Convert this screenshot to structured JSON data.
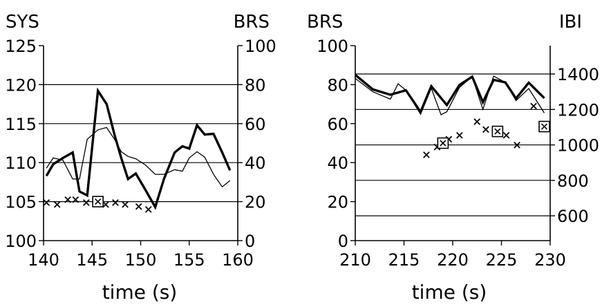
{
  "chart_data": [
    {
      "type": "line",
      "xlabel": "time (s)",
      "ylabel_left": "SYS",
      "ylabel_right": "BRS",
      "xlim": [
        140,
        160
      ],
      "ylim_left": [
        100,
        125
      ],
      "ylim_right": [
        0,
        100
      ],
      "xticks": [
        "140",
        "145",
        "150",
        "155",
        "160"
      ],
      "yticks_left": [
        "100",
        "105",
        "110",
        "115",
        "120",
        "125"
      ],
      "yticks_right": [
        "0",
        "20",
        "40",
        "60",
        "80",
        "100"
      ],
      "grid": "horizontal",
      "series": [
        {
          "axis": "left",
          "style": "thick",
          "x": [
            140.3,
            141,
            142,
            143,
            143.7,
            144.5,
            145.6,
            146.5,
            147.3,
            148,
            148.7,
            149.5,
            150.5,
            151.5,
            152.4,
            153.5,
            154.3,
            155,
            155.8,
            156.6,
            157.5,
            158.4,
            159.2
          ],
          "y": [
            108.3,
            109.8,
            110.6,
            111.3,
            106.3,
            105.8,
            119.2,
            117.5,
            113.6,
            110.6,
            107.9,
            108.6,
            106.5,
            104.3,
            107.9,
            111.3,
            112.1,
            111.8,
            114.8,
            113.6,
            113.7,
            111.3,
            109.0
          ]
        },
        {
          "axis": "left",
          "style": "thin",
          "x": [
            140.3,
            141,
            142,
            143,
            143.7,
            144.5,
            145.6,
            146.5,
            147.3,
            148,
            148.7,
            149.5,
            150.5,
            151.5,
            152.4,
            153.5,
            154.3,
            155,
            155.8,
            156.6,
            157.5,
            158.4,
            159.2
          ],
          "y": [
            109.3,
            110.6,
            110.3,
            107.9,
            107.9,
            113.0,
            114.2,
            114.5,
            113.0,
            111.4,
            110.8,
            110.5,
            109.7,
            108.5,
            108.5,
            109.1,
            108.9,
            110.6,
            111.4,
            110.7,
            108.5,
            106.9,
            107.7
          ]
        },
        {
          "axis": "right",
          "marker": "x",
          "x": [
            140.3,
            141.4,
            142.5,
            143.3,
            144.4,
            145.4,
            146.4,
            147.4,
            148.4,
            149.8,
            150.8
          ],
          "y": [
            19.5,
            18.5,
            21.0,
            21.0,
            19.5,
            19.0,
            18.5,
            19.5,
            18.5,
            17.5,
            16.0
          ]
        },
        {
          "axis": "right",
          "marker": "square",
          "x": [
            145.6
          ],
          "y": [
            20.0
          ]
        }
      ]
    },
    {
      "type": "line",
      "xlabel": "time (s)",
      "ylabel_left": "BRS",
      "ylabel_right": "IBI",
      "xlim": [
        210,
        230
      ],
      "ylim_left": [
        0,
        100
      ],
      "ylim_right": [
        460,
        1560
      ],
      "xticks": [
        "210",
        "215",
        "220",
        "225",
        "230"
      ],
      "yticks_left": [
        "0",
        "20",
        "40",
        "60",
        "80",
        "100"
      ],
      "yticks_right": [
        "600",
        "800",
        "1000",
        "1200",
        "1400"
      ],
      "grid": "horizontal",
      "series": [
        {
          "axis": "right",
          "style": "thick",
          "x": [
            210,
            211.8,
            213.6,
            215.2,
            216.7,
            217.8,
            219.4,
            220.7,
            222.0,
            223.1,
            224.2,
            225.4,
            226.5,
            227.8,
            229.4
          ],
          "y": [
            1395,
            1313,
            1283,
            1308,
            1186,
            1331,
            1225,
            1339,
            1385,
            1241,
            1367,
            1353,
            1262,
            1351,
            1264
          ]
        },
        {
          "axis": "right",
          "style": "thin",
          "x": [
            210,
            211.8,
            213.6,
            214.4,
            215.2,
            216.7,
            217.8,
            218.8,
            219.4,
            220.7,
            222.0,
            223.1,
            224.2,
            225.4,
            226.5,
            227.8,
            229.4
          ],
          "y": [
            1375,
            1300,
            1258,
            1345,
            1308,
            1173,
            1320,
            1170,
            1187,
            1325,
            1385,
            1200,
            1388,
            1353,
            1250,
            1318,
            1180
          ]
        },
        {
          "axis": "left",
          "marker": "x",
          "x": [
            217.3,
            218.4,
            219.6,
            220.7,
            222.5,
            223.4,
            224.6,
            225.5,
            226.6,
            228.3
          ],
          "y": [
            44.0,
            48.0,
            52.0,
            54.0,
            61.0,
            57.0,
            57.0,
            54.0,
            49.0,
            69.0
          ]
        },
        {
          "axis": "left",
          "marker": "square",
          "x": [
            219.0,
            224.6,
            229.4
          ],
          "y": [
            50.0,
            56.0,
            58.5
          ]
        }
      ]
    }
  ]
}
